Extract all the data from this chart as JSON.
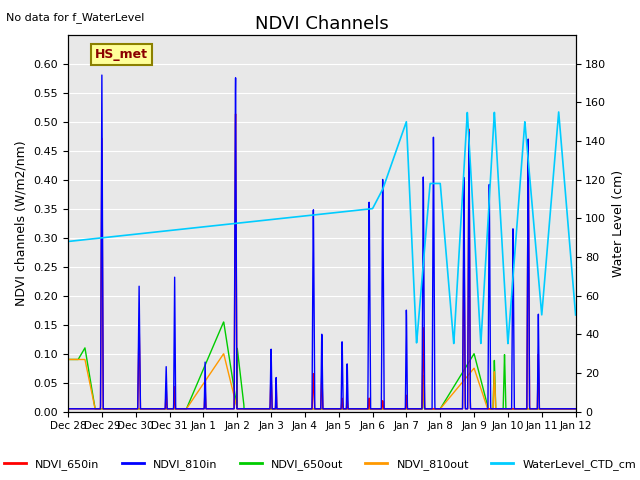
{
  "title": "NDVI Channels",
  "subtitle": "No data for f_WaterLevel",
  "ylabel_left": "NDVI channels (W/m2/nm)",
  "ylabel_right": "Water Level (cm)",
  "ylim_left": [
    0,
    0.65
  ],
  "ylim_right": [
    0,
    195
  ],
  "yticks_left": [
    0.0,
    0.05,
    0.1,
    0.15,
    0.2,
    0.25,
    0.3,
    0.35,
    0.4,
    0.45,
    0.5,
    0.55,
    0.6
  ],
  "yticks_right": [
    0,
    20,
    40,
    60,
    80,
    100,
    120,
    140,
    160,
    180
  ],
  "background_color": "#e8e8e8",
  "station_label": "HS_met",
  "station_label_color": "#8B0000",
  "station_box_color": "#ffff99",
  "station_box_edge": "#8B8000",
  "legend_entries": [
    "NDVI_650in",
    "NDVI_810in",
    "NDVI_650out",
    "NDVI_810out",
    "WaterLevel_CTD_cm"
  ],
  "line_colors": {
    "NDVI_650in": "#ff0000",
    "NDVI_810in": "#0000ff",
    "NDVI_650out": "#00cc00",
    "NDVI_810out": "#ff9900",
    "WaterLevel_CTD_cm": "#00ccff"
  },
  "xtick_labels": [
    "Dec 28",
    "Dec 29",
    "Dec 30",
    "Dec 31",
    "Jan 1",
    "Jan 2",
    "Jan 3",
    "Jan 4",
    "Jan 5",
    "Jan 6",
    "Jan 7",
    "Jan 8",
    "Jan 9",
    "Jan 10",
    "Jan 11",
    "Jan 12"
  ]
}
